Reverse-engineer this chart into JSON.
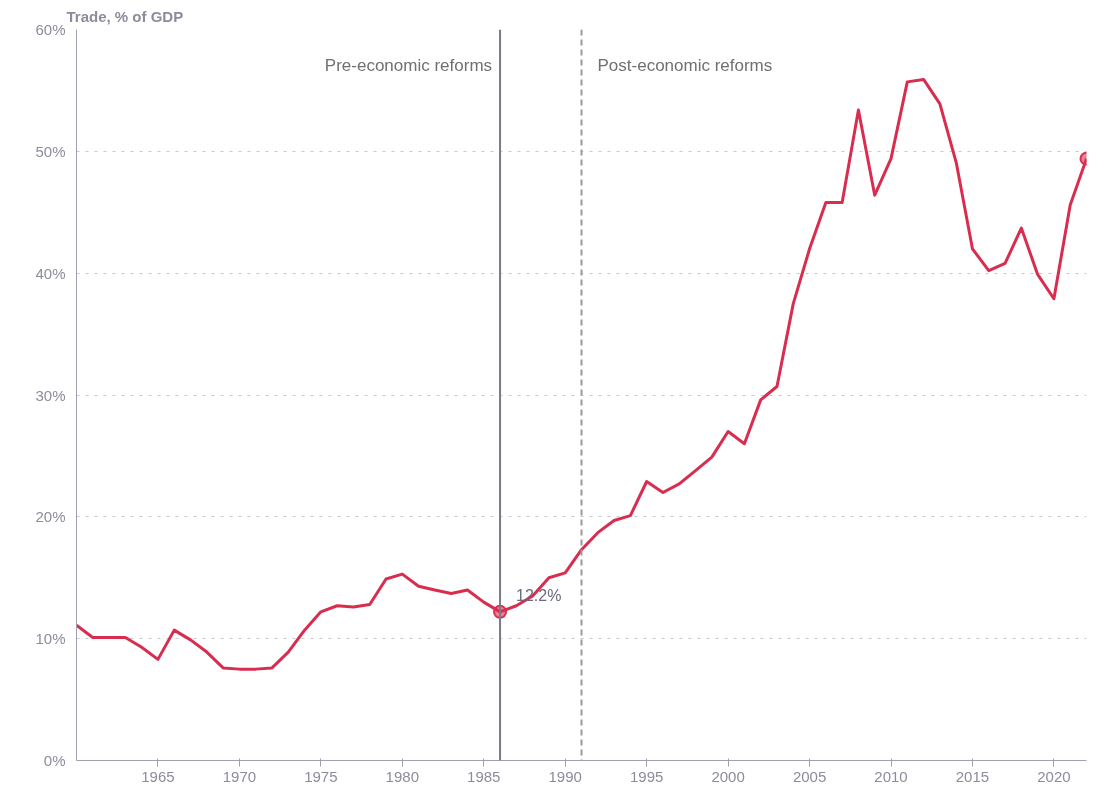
{
  "chart_data": {
    "type": "line",
    "ylabel": "Trade, % of GDP",
    "x": [
      1960,
      1961,
      1962,
      1963,
      1964,
      1965,
      1966,
      1967,
      1968,
      1969,
      1970,
      1971,
      1972,
      1973,
      1974,
      1975,
      1976,
      1977,
      1978,
      1979,
      1980,
      1981,
      1982,
      1983,
      1984,
      1985,
      1986,
      1987,
      1988,
      1989,
      1990,
      1991,
      1992,
      1993,
      1994,
      1995,
      1996,
      1997,
      1998,
      1999,
      2000,
      2001,
      2002,
      2003,
      2004,
      2005,
      2006,
      2007,
      2008,
      2009,
      2010,
      2011,
      2012,
      2013,
      2014,
      2015,
      2016,
      2017,
      2018,
      2019,
      2020,
      2021,
      2022
    ],
    "series": [
      {
        "color": "#d92d50",
        "values": [
          11.1,
          10.1,
          10.1,
          10.1,
          9.3,
          8.3,
          10.7,
          9.9,
          8.9,
          7.6,
          7.5,
          7.5,
          7.6,
          8.9,
          10.7,
          12.2,
          12.7,
          12.6,
          12.8,
          14.9,
          15.3,
          14.3,
          14.0,
          13.7,
          14.0,
          13.0,
          12.2,
          12.7,
          13.5,
          15.0,
          15.4,
          17.3,
          18.7,
          19.7,
          20.1,
          22.9,
          22.0,
          22.7,
          23.8,
          24.9,
          27.0,
          26.0,
          29.6,
          30.7,
          37.5,
          42.0,
          45.8,
          45.8,
          53.4,
          46.4,
          49.4,
          55.7,
          55.9,
          53.9,
          49.1,
          42.0,
          40.2,
          40.8,
          43.7,
          39.9,
          37.9,
          45.6,
          49.4
        ]
      },
      {
        "type": "scatter",
        "marker": "circle",
        "color": "#d92d50",
        "x": [
          1986,
          2022
        ],
        "values": [
          12.2,
          49.4
        ]
      }
    ],
    "xlim": [
      1960,
      2022
    ],
    "ylim": [
      0,
      60
    ],
    "xticks": [
      1965,
      1970,
      1975,
      1980,
      1985,
      1990,
      1995,
      2000,
      2005,
      2010,
      2015,
      2020
    ],
    "yticks": [
      {
        "value": 0,
        "label": "0%"
      },
      {
        "value": 10,
        "label": "10%"
      },
      {
        "value": 20,
        "label": "20%"
      },
      {
        "value": 30,
        "label": "30%"
      },
      {
        "value": 40,
        "label": "40%"
      },
      {
        "value": 50,
        "label": "50%"
      },
      {
        "value": 60,
        "label": "60%"
      }
    ],
    "grid": "y",
    "marker": "none",
    "line_style": "solid",
    "ref_lines": [
      {
        "axis": "x",
        "value": 1986,
        "label": "Pre-economic reforms",
        "color": "#7a7a86",
        "line_style": "solid"
      },
      {
        "axis": "x",
        "value": 1991,
        "label": "Post-economic reforms",
        "color": "#9a9a9a",
        "line_style": "dashed"
      }
    ],
    "annotations": [
      {
        "text": "12.2%",
        "x": 1986,
        "y": 12.2
      }
    ]
  }
}
